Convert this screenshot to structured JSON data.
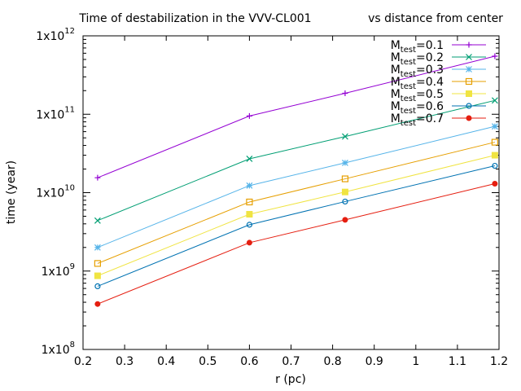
{
  "chart_data": {
    "type": "line",
    "title": "Time of destabilization in the VVV-CL001",
    "subtitle": "vs distance from center",
    "xlabel": "r (pc)",
    "ylabel": "time (year)",
    "xlim": [
      0.2,
      1.2
    ],
    "ylim": [
      100000000,
      1000000000000
    ],
    "y_scale": "log",
    "grid": false,
    "legend_position": "top-right",
    "x_ticks": [
      "0.2",
      "0.3",
      "0.4",
      "0.5",
      "0.6",
      "0.7",
      "0.8",
      "0.9",
      "1",
      "1.1",
      "1.2"
    ],
    "y_ticks": [
      {
        "base": "1x10",
        "exp": "8"
      },
      {
        "base": "1x10",
        "exp": "9"
      },
      {
        "base": "1x10",
        "exp": "10"
      },
      {
        "base": "1x10",
        "exp": "11"
      },
      {
        "base": "1x10",
        "exp": "12"
      }
    ],
    "x": [
      0.235,
      0.6,
      0.83,
      1.19
    ],
    "series": [
      {
        "name_main": "M",
        "name_sub": "test",
        "name_val": "=0.1",
        "color": "#9400d3",
        "marker": "plus",
        "values": [
          15500000000,
          95000000000,
          185000000000,
          550000000000
        ]
      },
      {
        "name_main": "M",
        "name_sub": "test",
        "name_val": "=0.2",
        "color": "#009e73",
        "marker": "cross",
        "values": [
          4400000000,
          27000000000,
          52000000000,
          150000000000
        ]
      },
      {
        "name_main": "M",
        "name_sub": "test",
        "name_val": "=0.3",
        "color": "#56b4e9",
        "marker": "star",
        "values": [
          2000000000,
          12300000000,
          24000000000,
          70000000000
        ]
      },
      {
        "name_main": "M",
        "name_sub": "test",
        "name_val": "=0.4",
        "color": "#e69f00",
        "marker": "open-square",
        "values": [
          1250000000,
          7600000000,
          15000000000,
          44000000000
        ]
      },
      {
        "name_main": "M",
        "name_sub": "test",
        "name_val": "=0.5",
        "color": "#f0e442",
        "marker": "filled-square",
        "values": [
          870000000,
          5300000000,
          10200000000,
          30000000000
        ]
      },
      {
        "name_main": "M",
        "name_sub": "test",
        "name_val": "=0.6",
        "color": "#0072b2",
        "marker": "open-circle",
        "values": [
          640000000,
          3900000000,
          7700000000,
          22000000000
        ]
      },
      {
        "name_main": "M",
        "name_sub": "test",
        "name_val": "=0.7",
        "color": "#e51e10",
        "marker": "filled-circle",
        "values": [
          380000000,
          2300000000,
          4500000000,
          13000000000
        ]
      }
    ]
  }
}
